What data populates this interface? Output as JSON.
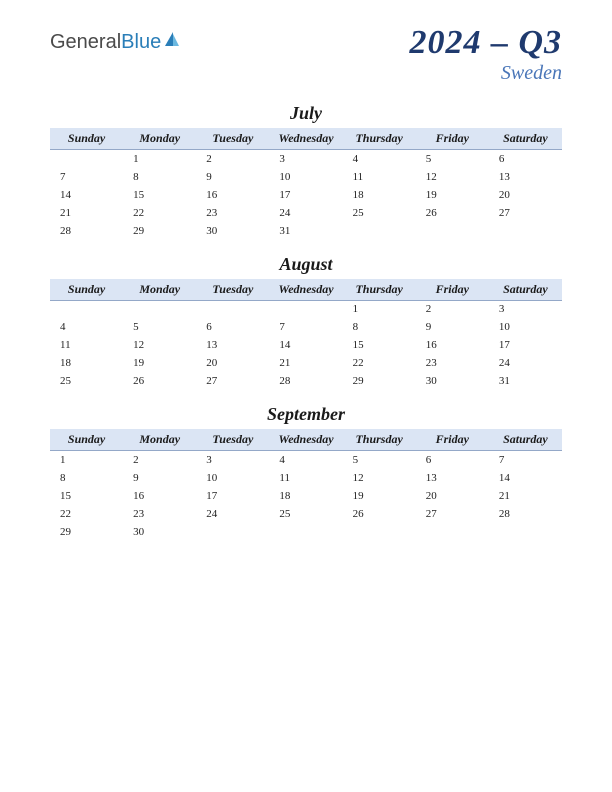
{
  "logo": {
    "part1": "General",
    "part2": "Blue"
  },
  "title": "2024 – Q3",
  "subtitle": "Sweden",
  "day_headers": [
    "Sunday",
    "Monday",
    "Tuesday",
    "Wednesday",
    "Thursday",
    "Friday",
    "Saturday"
  ],
  "header_bg": "#dbe5f4",
  "header_border": "#94a8c8",
  "title_color": "#1f3a6e",
  "subtitle_color": "#4a76b8",
  "months": [
    {
      "name": "July",
      "weeks": [
        [
          "",
          "1",
          "2",
          "3",
          "4",
          "5",
          "6"
        ],
        [
          "7",
          "8",
          "9",
          "10",
          "11",
          "12",
          "13"
        ],
        [
          "14",
          "15",
          "16",
          "17",
          "18",
          "19",
          "20"
        ],
        [
          "21",
          "22",
          "23",
          "24",
          "25",
          "26",
          "27"
        ],
        [
          "28",
          "29",
          "30",
          "31",
          "",
          "",
          ""
        ]
      ]
    },
    {
      "name": "August",
      "weeks": [
        [
          "",
          "",
          "",
          "",
          "1",
          "2",
          "3"
        ],
        [
          "4",
          "5",
          "6",
          "7",
          "8",
          "9",
          "10"
        ],
        [
          "11",
          "12",
          "13",
          "14",
          "15",
          "16",
          "17"
        ],
        [
          "18",
          "19",
          "20",
          "21",
          "22",
          "23",
          "24"
        ],
        [
          "25",
          "26",
          "27",
          "28",
          "29",
          "30",
          "31"
        ]
      ]
    },
    {
      "name": "September",
      "weeks": [
        [
          "1",
          "2",
          "3",
          "4",
          "5",
          "6",
          "7"
        ],
        [
          "8",
          "9",
          "10",
          "11",
          "12",
          "13",
          "14"
        ],
        [
          "15",
          "16",
          "17",
          "18",
          "19",
          "20",
          "21"
        ],
        [
          "22",
          "23",
          "24",
          "25",
          "26",
          "27",
          "28"
        ],
        [
          "29",
          "30",
          "",
          "",
          "",
          "",
          ""
        ]
      ]
    }
  ]
}
